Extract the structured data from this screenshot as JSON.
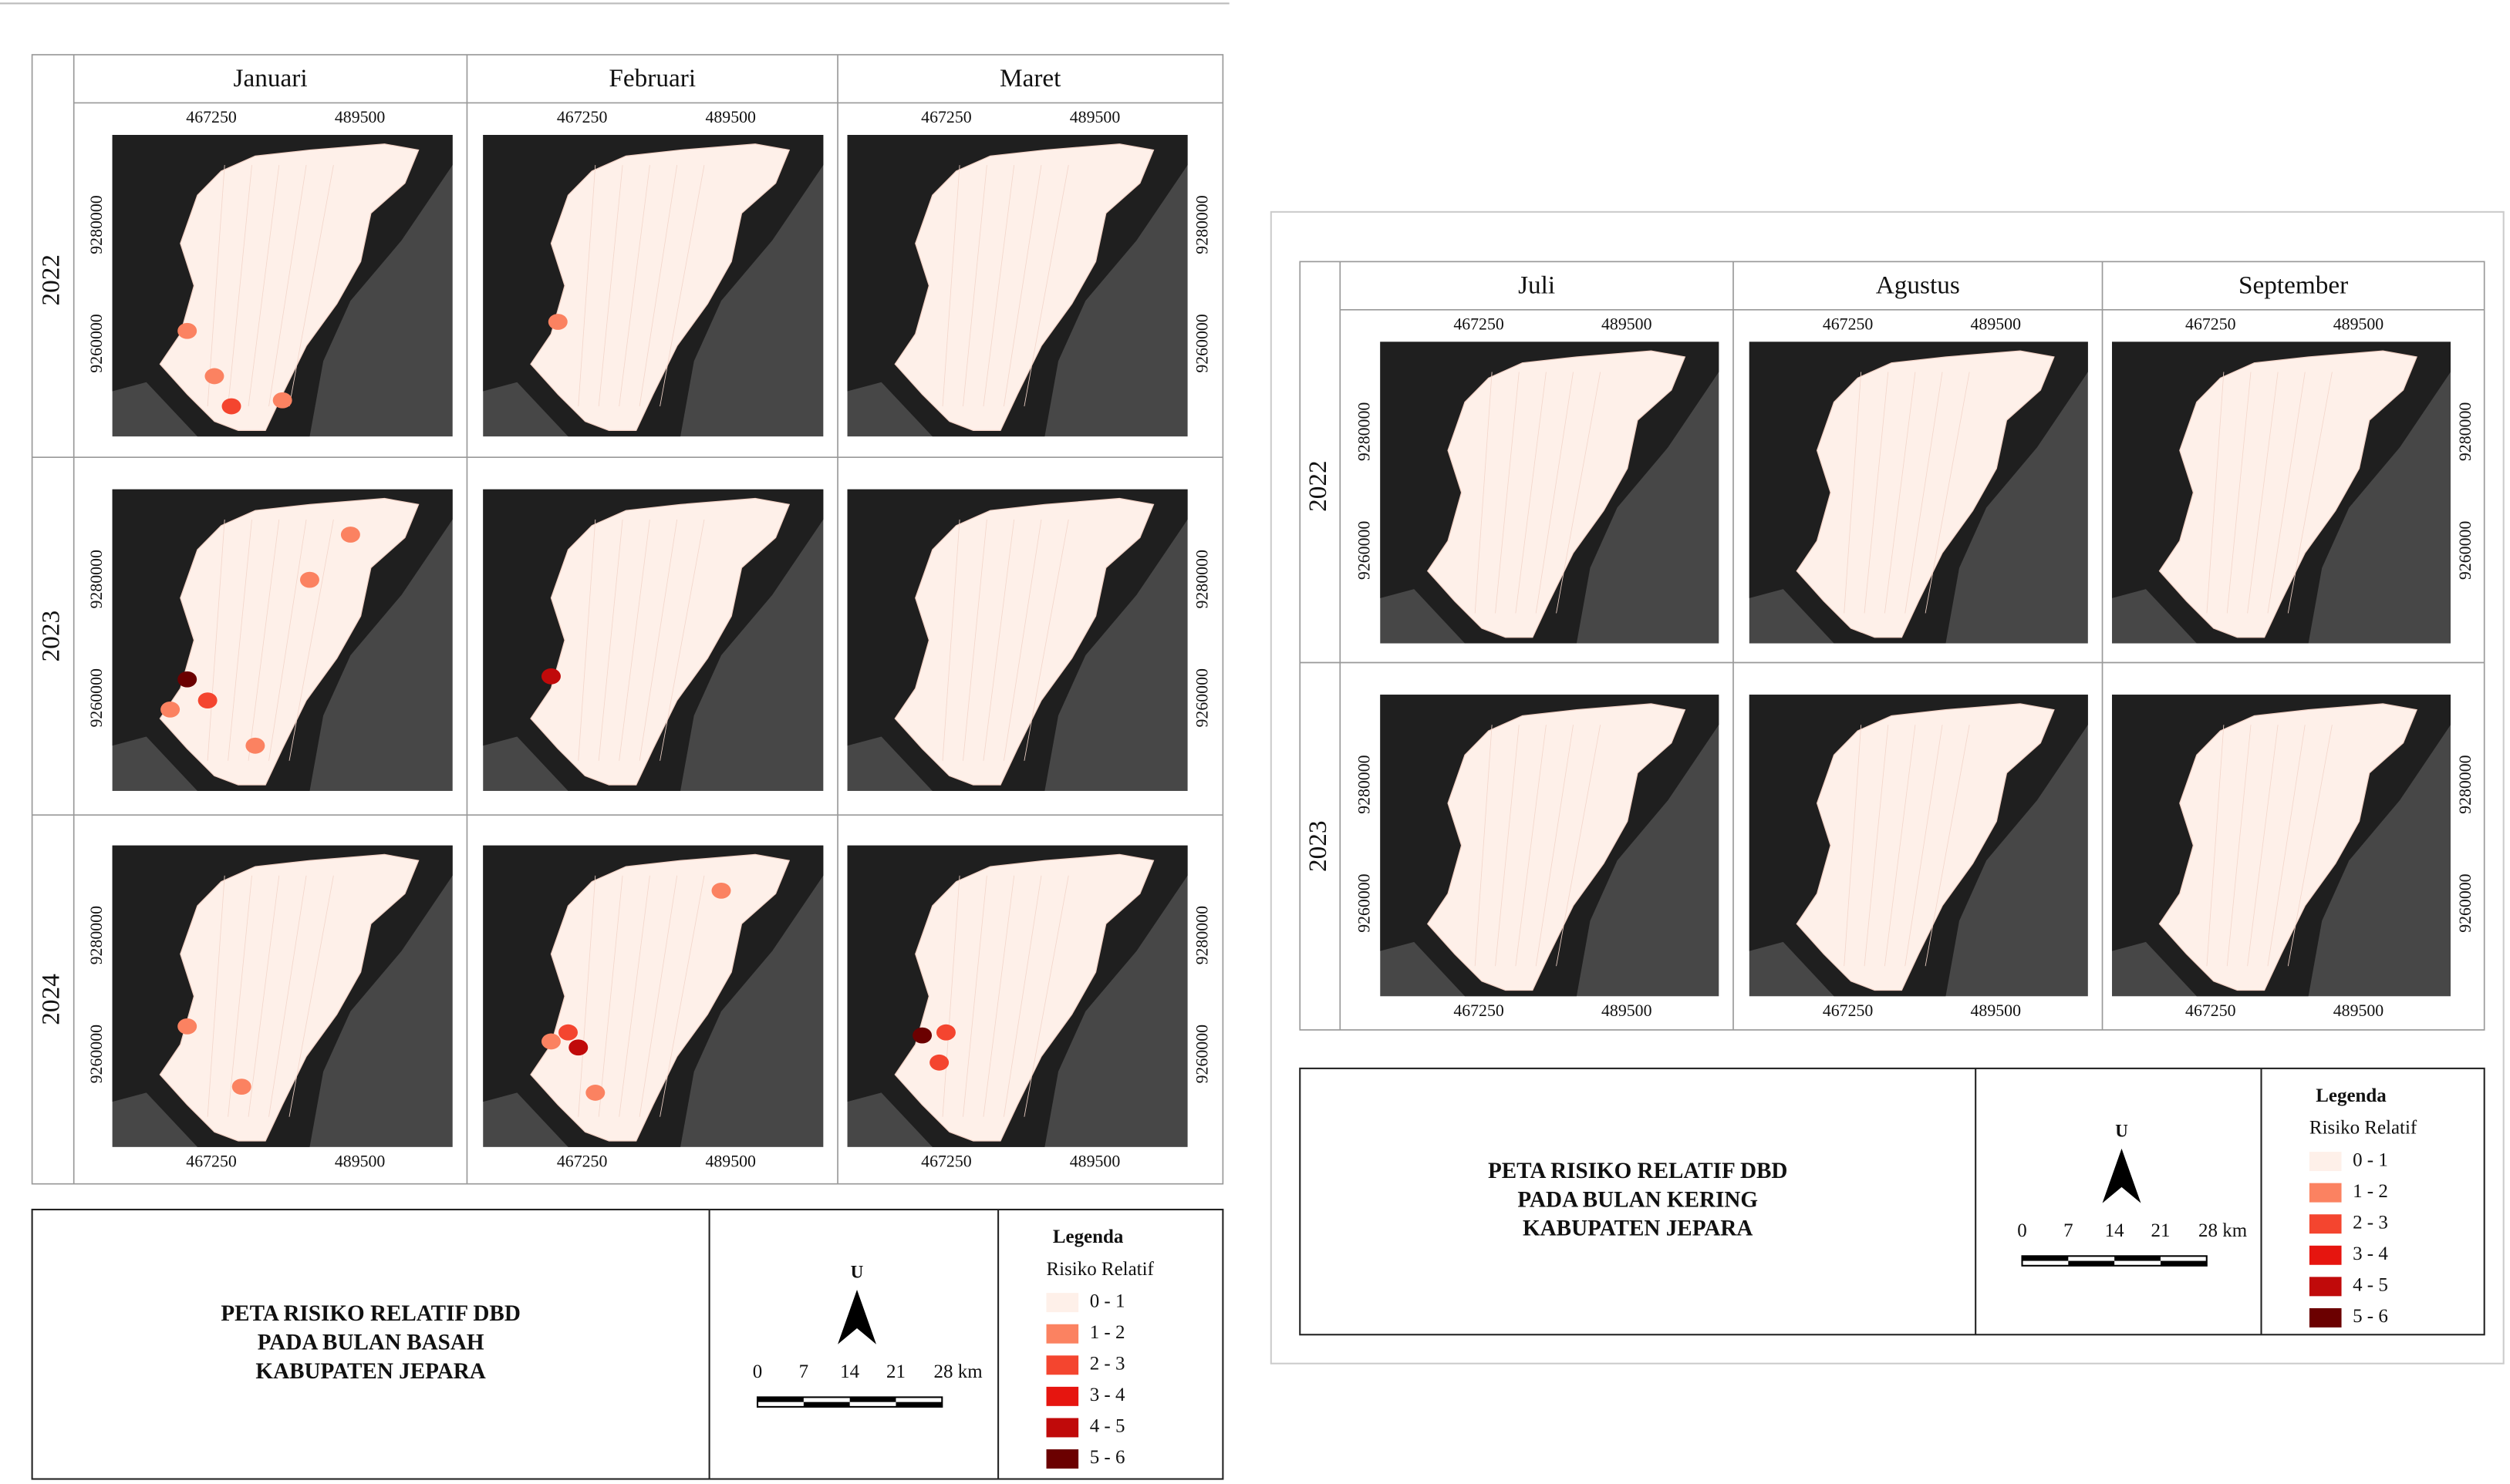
{
  "wet": {
    "columns": [
      "Januari",
      "Februari",
      "Maret"
    ],
    "rows": [
      "2022",
      "2023",
      "2024"
    ],
    "title": [
      "PETA RISIKO RELATIF DBD",
      "PADA BULAN BASAH",
      "KABUPATEN JEPARA"
    ]
  },
  "dry": {
    "columns": [
      "Juli",
      "Agustus",
      "September"
    ],
    "rows": [
      "2022",
      "2023"
    ],
    "title": [
      "PETA RISIKO RELATIF DBD",
      "PADA BULAN KERING",
      "KABUPATEN JEPARA"
    ]
  },
  "x_ticks": [
    "467250",
    "489500"
  ],
  "y_ticks": [
    "9280000",
    "9260000"
  ],
  "north": "U",
  "scale": [
    "0",
    "7",
    "14",
    "21",
    "28 km"
  ],
  "legend": {
    "title": "Legenda",
    "subtitle": "Risiko Relatif",
    "classes": [
      {
        "label": "0 - 1",
        "color": "#fef0e9"
      },
      {
        "label": "1 - 2",
        "color": "#fb8261"
      },
      {
        "label": "2 - 3",
        "color": "#f4452f"
      },
      {
        "label": "3 - 4",
        "color": "#e6150f"
      },
      {
        "label": "4 - 5",
        "color": "#c00a0a"
      },
      {
        "label": "5 - 6",
        "color": "#6b0000"
      }
    ]
  }
}
